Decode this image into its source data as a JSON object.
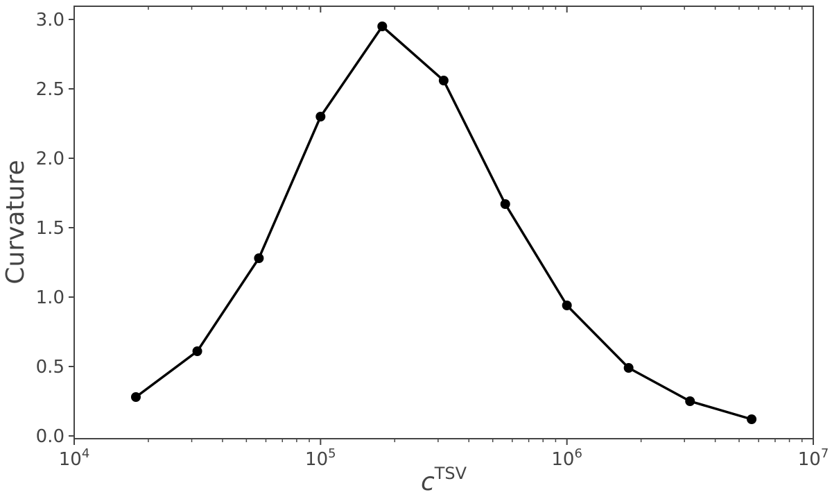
{
  "chart_data": {
    "type": "line",
    "title": "",
    "xlabel_base": "c",
    "xlabel_superscript": "TSV",
    "ylabel": "Curvature",
    "x_scale": "log",
    "xlim": [
      10000,
      10000000
    ],
    "ylim": [
      0.0,
      3.0
    ],
    "grid": false,
    "legend": "none",
    "x_ticks": [
      {
        "value": 10000,
        "base": "10",
        "exp": "4"
      },
      {
        "value": 100000,
        "base": "10",
        "exp": "5"
      },
      {
        "value": 1000000,
        "base": "10",
        "exp": "6"
      },
      {
        "value": 10000000,
        "base": "10",
        "exp": "7"
      }
    ],
    "y_ticks": [
      {
        "value": 0.0,
        "label": "0.0"
      },
      {
        "value": 0.5,
        "label": "0.5"
      },
      {
        "value": 1.0,
        "label": "1.0"
      },
      {
        "value": 1.5,
        "label": "1.5"
      },
      {
        "value": 2.0,
        "label": "2.0"
      },
      {
        "value": 2.5,
        "label": "2.5"
      },
      {
        "value": 3.0,
        "label": "3.0"
      }
    ],
    "series": [
      {
        "color": "#000000",
        "marker": "circle",
        "x": [
          17800,
          31600,
          56200,
          100000,
          178000,
          316000,
          562000,
          1000000,
          1780000,
          3160000,
          5620000
        ],
        "y": [
          0.28,
          0.61,
          1.28,
          2.3,
          2.95,
          2.56,
          1.67,
          0.94,
          0.49,
          0.25,
          0.12
        ]
      }
    ]
  }
}
